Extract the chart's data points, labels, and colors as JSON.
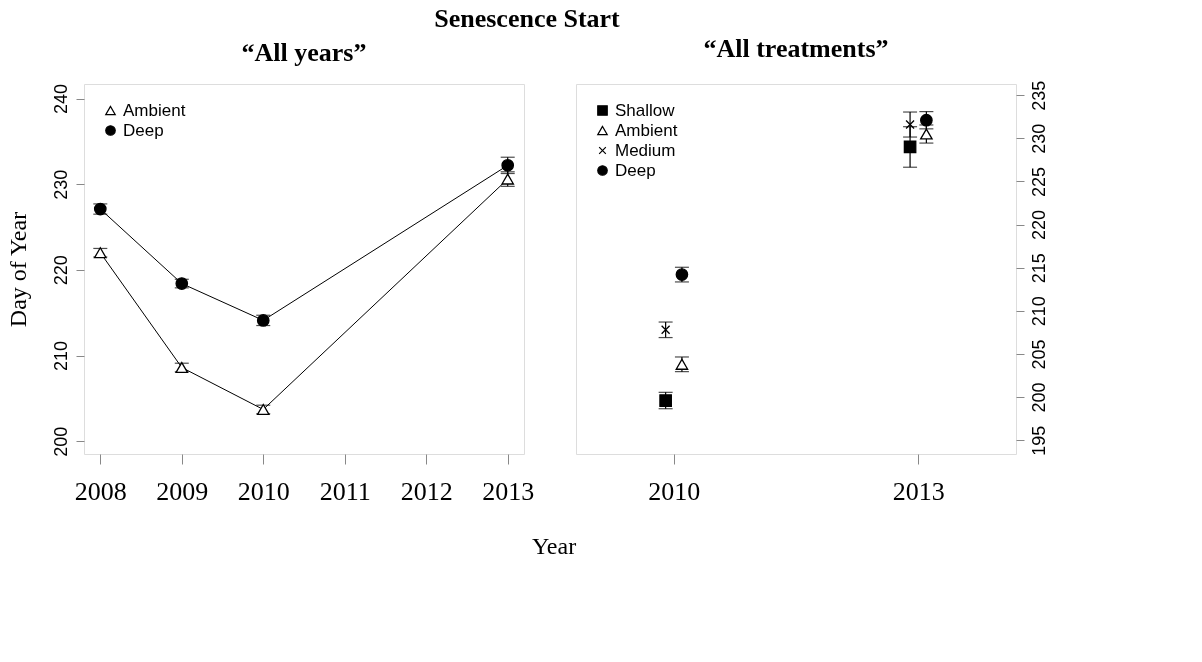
{
  "chart_data": [
    {
      "type": "line",
      "title": "“All years”",
      "ylabel": "Day of Year",
      "xlabel": "Year",
      "annotations": [
        "Senescence Start"
      ],
      "x": [
        2008,
        2009,
        2010,
        2013
      ],
      "xlim": [
        2007.8,
        2013.2
      ],
      "xticks": [
        2008,
        2009,
        2010,
        2011,
        2012,
        2013
      ],
      "ylim": [
        198.5,
        241.7
      ],
      "yticks": [
        200,
        210,
        220,
        230,
        240
      ],
      "grid": false,
      "legend": "top left",
      "series": [
        {
          "name": "Ambient",
          "color": "#000000",
          "marker": "triangle",
          "values": [
            222.0,
            208.6,
            203.7,
            230.6
          ],
          "errors": [
            0.5,
            0.5,
            0.5,
            0.85
          ]
        },
        {
          "name": "Deep",
          "color": "#000000",
          "marker": "circle",
          "values": [
            227.1,
            218.4,
            214.1,
            232.2
          ],
          "errors": [
            0.6,
            0.5,
            0.6,
            0.95
          ]
        }
      ]
    },
    {
      "type": "scatter",
      "title": "“All treatments”",
      "xlim": [
        2008.8,
        2014.2
      ],
      "xticks": [
        2010,
        2013
      ],
      "y2lim": [
        193.4,
        236.3
      ],
      "y2ticks": [
        195,
        200,
        205,
        210,
        215,
        220,
        225,
        230,
        235
      ],
      "grid": false,
      "legend": "top left",
      "series": [
        {
          "name": "Shallow",
          "color": "#000000",
          "marker": "square",
          "axis": "y2",
          "x": [
            2009.9,
            2012.9
          ],
          "values": [
            199.6,
            229.0
          ],
          "errors": [
            0.95,
            2.35
          ]
        },
        {
          "name": "Ambient",
          "color": "#000000",
          "marker": "triangle",
          "axis": "y2",
          "x": [
            2010.1,
            2013.1
          ],
          "values": [
            203.8,
            230.5
          ],
          "errors": [
            0.85,
            1.05
          ]
        },
        {
          "name": "Medium",
          "color": "#000000",
          "marker": "cross",
          "axis": "y2",
          "x": [
            2009.9,
            2012.9
          ],
          "values": [
            207.8,
            231.6
          ],
          "errors": [
            0.9,
            1.45
          ]
        },
        {
          "name": "Deep",
          "color": "#000000",
          "marker": "circle",
          "axis": "y2",
          "x": [
            2010.1,
            2013.1
          ],
          "values": [
            214.2,
            232.1
          ],
          "errors": [
            0.85,
            1.0
          ]
        }
      ]
    }
  ]
}
